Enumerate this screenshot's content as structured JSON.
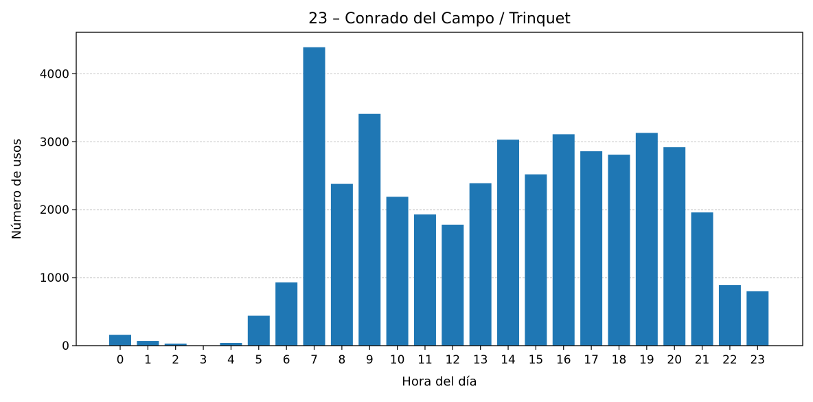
{
  "chart_data": {
    "type": "bar",
    "title": "23 – Conrado del Campo / Trinquet",
    "xlabel": "Hora del día",
    "ylabel": "Número de usos",
    "categories": [
      "0",
      "1",
      "2",
      "3",
      "4",
      "5",
      "6",
      "7",
      "8",
      "9",
      "10",
      "11",
      "12",
      "13",
      "14",
      "15",
      "16",
      "17",
      "18",
      "19",
      "20",
      "21",
      "22",
      "23"
    ],
    "values": [
      160,
      70,
      30,
      5,
      40,
      440,
      930,
      4390,
      2380,
      3410,
      2190,
      1930,
      1780,
      2390,
      3030,
      2520,
      3110,
      2860,
      2810,
      3130,
      2920,
      1960,
      890,
      800
    ],
    "ylim": [
      0,
      4610
    ],
    "yticks": [
      0,
      1000,
      2000,
      3000,
      4000
    ],
    "grid": {
      "axis": "y",
      "style": "dashed"
    },
    "colors": {
      "bar": "#1f77b4",
      "grid": "#b0b0b0",
      "axis": "#000000"
    }
  }
}
